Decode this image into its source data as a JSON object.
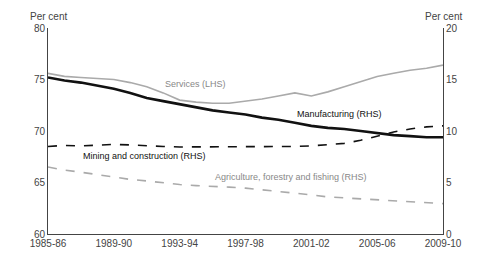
{
  "chart_data": {
    "type": "line",
    "categories": [
      "1985-86",
      null,
      null,
      null,
      "1989-90",
      null,
      null,
      null,
      "1993-94",
      null,
      null,
      null,
      "1997-98",
      null,
      null,
      null,
      "2001-02",
      null,
      null,
      null,
      "2005-06",
      null,
      null,
      null,
      "2009-10"
    ],
    "series": [
      {
        "name": "Services (LHS)",
        "color": "#aaaaaa",
        "line_style": "solid",
        "values": [
          75.6,
          75.3,
          75.2,
          75.1,
          75.0,
          74.7,
          74.3,
          73.7,
          73.0,
          72.8,
          72.7,
          72.7,
          72.9,
          73.1,
          73.4,
          73.7,
          73.4,
          73.8,
          74.3,
          74.8,
          75.3,
          75.6,
          75.9,
          76.1,
          76.4
        ]
      },
      {
        "name": "Manufacturing (RHS)",
        "color": "#111111",
        "line_style": "solid",
        "axis": "y2",
        "values": [
          15.2,
          14.9,
          14.7,
          14.4,
          14.1,
          13.7,
          13.2,
          12.9,
          12.6,
          12.3,
          12.0,
          11.8,
          11.6,
          11.3,
          11.1,
          10.8,
          10.5,
          10.3,
          10.2,
          10.0,
          9.8,
          9.6,
          9.5,
          9.4,
          9.4
        ]
      },
      {
        "name": "Mining and construction (RHS)",
        "color": "#111111",
        "line_style": "dashed",
        "axis": "y2",
        "values": [
          8.5,
          8.6,
          8.55,
          8.6,
          8.7,
          8.65,
          8.55,
          8.5,
          8.45,
          8.45,
          8.5,
          8.5,
          8.5,
          8.5,
          8.45,
          8.5,
          8.55,
          8.65,
          8.8,
          9.1,
          9.5,
          9.9,
          10.2,
          10.4,
          10.5
        ]
      },
      {
        "name": "Agriculture, forestry and fishing (RHS)",
        "color": "#aaaaaa",
        "line_style": "dashed",
        "axis": "y2",
        "values": [
          6.5,
          6.2,
          6.0,
          5.75,
          5.5,
          5.3,
          5.15,
          4.95,
          4.8,
          4.7,
          4.65,
          4.55,
          4.45,
          4.3,
          4.15,
          4.0,
          3.8,
          3.6,
          3.5,
          3.4,
          3.3,
          3.2,
          3.1,
          3.0,
          2.95
        ]
      }
    ],
    "ylabel": "Per cent",
    "y2label": "Per cent",
    "ylim": [
      60,
      80
    ],
    "yticks": [
      60,
      65,
      70,
      75,
      80
    ],
    "y2lim": [
      0,
      20
    ],
    "y2ticks": [
      0,
      5,
      10,
      15,
      20
    ],
    "grid": false
  }
}
